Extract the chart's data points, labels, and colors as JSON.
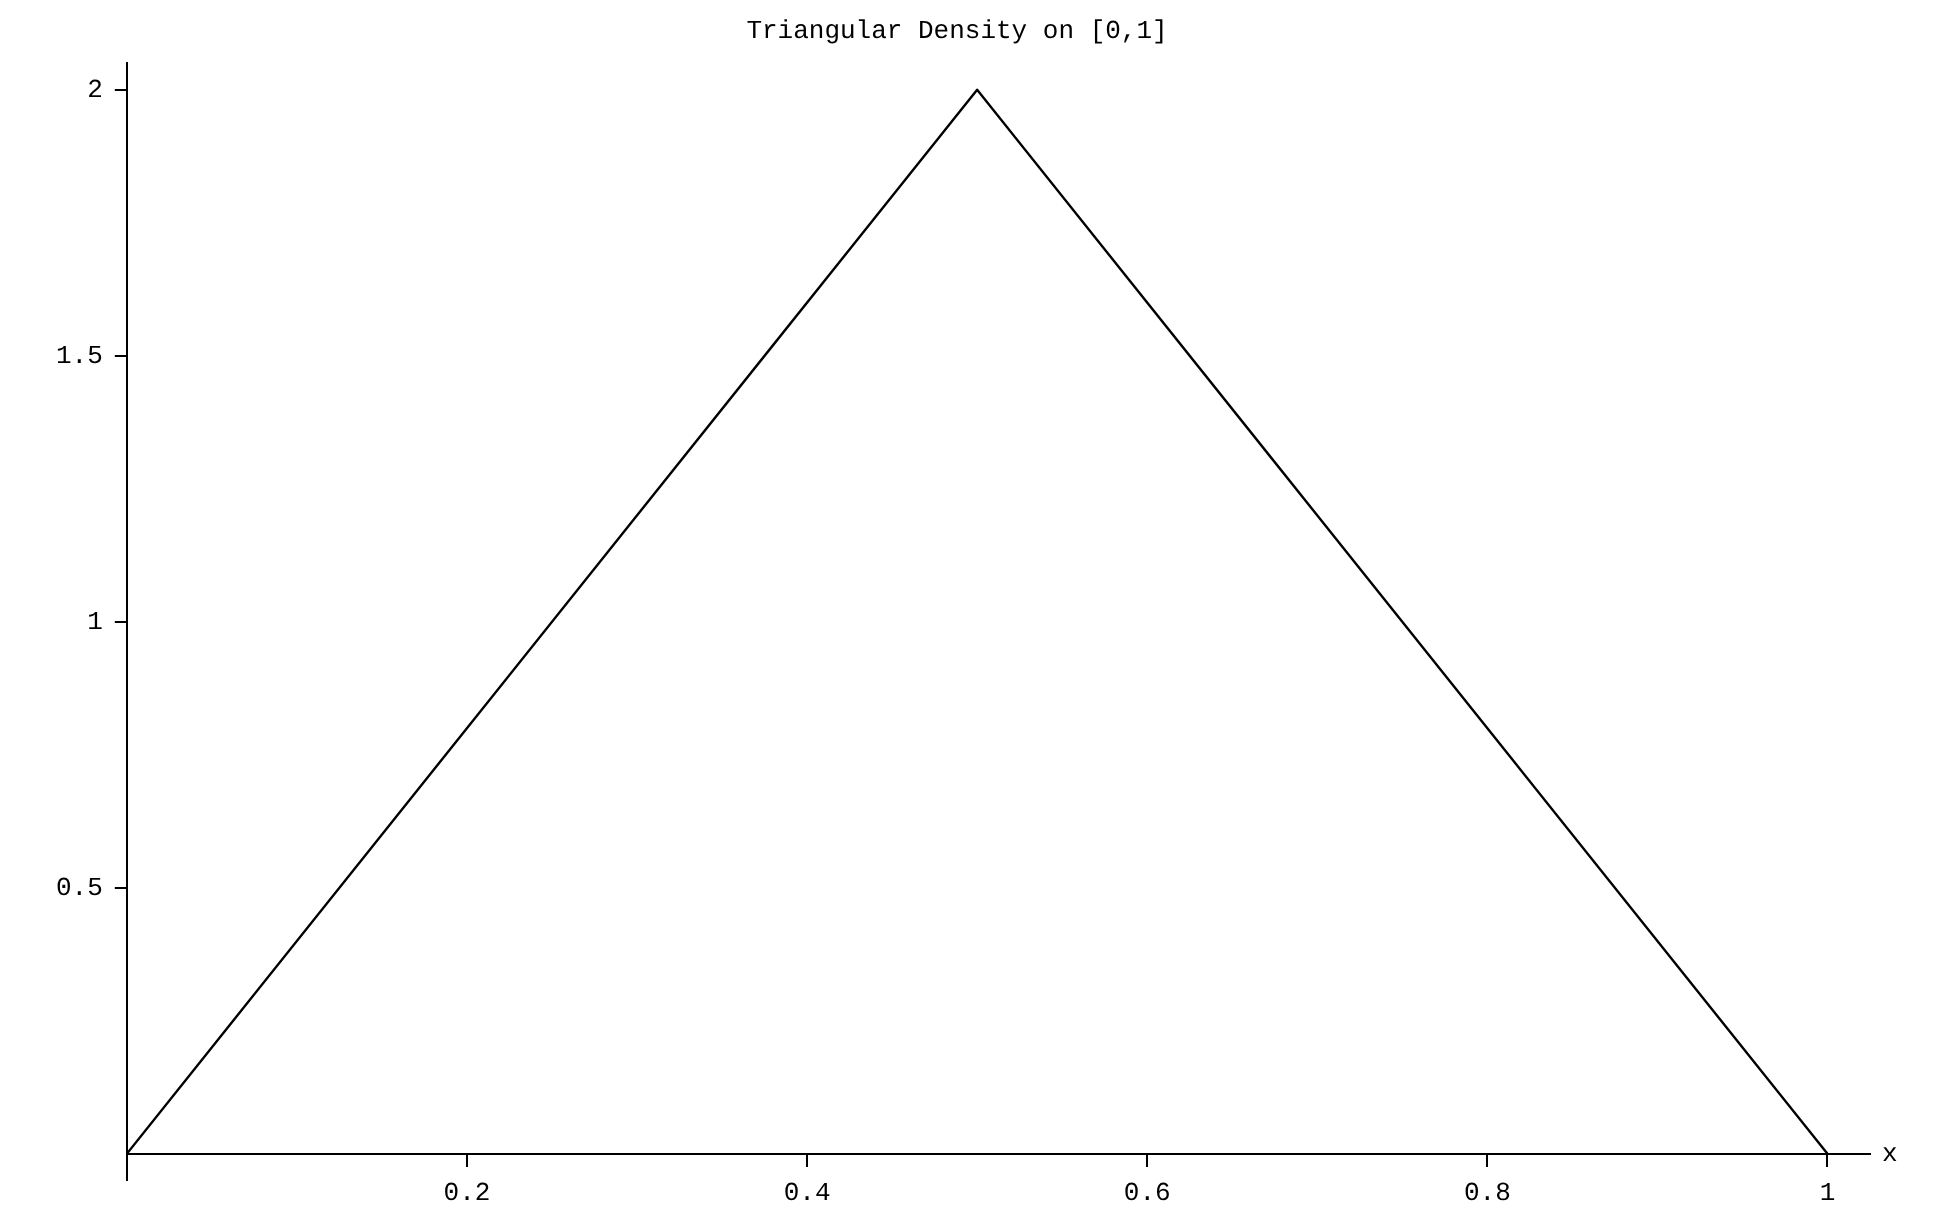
{
  "chart_data": {
    "type": "line",
    "title": "Triangular Density on [0,1]",
    "xlabel": "x",
    "x": [
      0,
      0.5,
      1
    ],
    "series": [
      {
        "color": "#000000",
        "values": [
          0,
          2,
          0
        ]
      }
    ],
    "xlim": [
      0,
      1.025
    ],
    "ylim": [
      -0.05,
      2.05
    ],
    "xticks": [
      0.2,
      0.4,
      0.6,
      0.8,
      1
    ],
    "yticks": [
      0.5,
      1,
      1.5,
      2
    ],
    "grid": false,
    "legend": false,
    "marker": "none",
    "line_style": "solid"
  }
}
